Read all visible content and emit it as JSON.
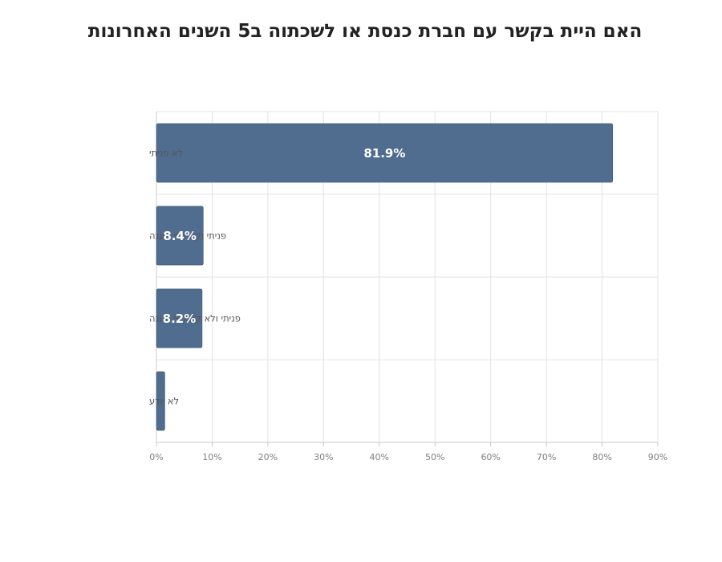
{
  "chart_data": {
    "type": "bar",
    "orientation": "horizontal",
    "title": "האם היית בקשר עם חברת כנסת או לשכתוה ב5 השנים האחרונות",
    "categories": [
      "לא פניתי",
      "פניתי וקיבלתי מענה",
      "פניתי ולא קיבלתי מענה",
      "לא יודע"
    ],
    "values": [
      81.9,
      8.4,
      8.2,
      1.5
    ],
    "data_labels": [
      "81.9%",
      "8.4%",
      "8.2%",
      ""
    ],
    "x_ticks": [
      "0%",
      "10%",
      "20%",
      "30%",
      "40%",
      "50%",
      "60%",
      "70%",
      "80%",
      "90%"
    ],
    "xlim": [
      0,
      90
    ],
    "grid": true,
    "bar_color": "#506d8f"
  }
}
